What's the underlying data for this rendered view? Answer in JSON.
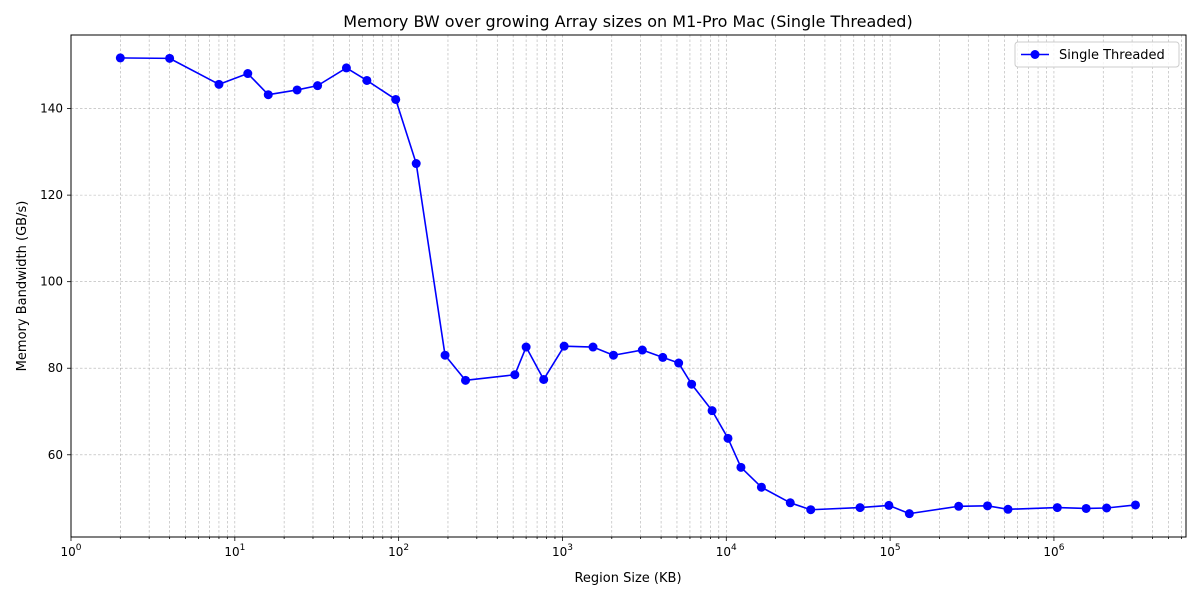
{
  "chart_data": {
    "type": "line",
    "title": "Memory BW over growing Array sizes on M1-Pro Mac (Single Threaded)",
    "xlabel": "Region Size (KB)",
    "ylabel": "Memory Bandwidth (GB/s)",
    "x_scale": "log",
    "xlim": [
      1,
      6400000
    ],
    "ylim": [
      41,
      157
    ],
    "x_ticks": [
      {
        "value": 1,
        "base": "10",
        "exp": "0"
      },
      {
        "value": 10,
        "base": "10",
        "exp": "1"
      },
      {
        "value": 100,
        "base": "10",
        "exp": "2"
      },
      {
        "value": 1000,
        "base": "10",
        "exp": "3"
      },
      {
        "value": 10000,
        "base": "10",
        "exp": "4"
      },
      {
        "value": 100000,
        "base": "10",
        "exp": "5"
      },
      {
        "value": 1000000,
        "base": "10",
        "exp": "6"
      }
    ],
    "y_ticks": [
      60,
      80,
      100,
      120,
      140
    ],
    "grid": true,
    "legend_position": "top-right",
    "series": [
      {
        "name": "Single Threaded",
        "color": "#0000ff",
        "marker": "circle",
        "x": [
          2,
          4,
          8,
          12,
          16,
          24,
          32,
          48,
          64,
          96,
          128,
          192,
          256,
          512,
          600,
          768,
          1024,
          1536,
          2048,
          3072,
          4096,
          5120,
          6144,
          8192,
          10240,
          12288,
          16384,
          24576,
          32768,
          65536,
          98304,
          131072,
          262144,
          393216,
          524288,
          1048576,
          1572864,
          2097152,
          3145728
        ],
        "y": [
          151.7,
          151.6,
          145.6,
          148.1,
          143.2,
          144.3,
          145.3,
          149.4,
          146.5,
          142.1,
          127.3,
          83.0,
          77.2,
          78.5,
          84.9,
          77.4,
          85.1,
          84.9,
          83.0,
          84.2,
          82.5,
          81.2,
          76.3,
          70.2,
          63.8,
          57.1,
          52.5,
          48.9,
          47.3,
          47.8,
          48.3,
          46.4,
          48.1,
          48.2,
          47.4,
          47.8,
          47.6,
          47.7,
          48.4
        ]
      }
    ]
  }
}
